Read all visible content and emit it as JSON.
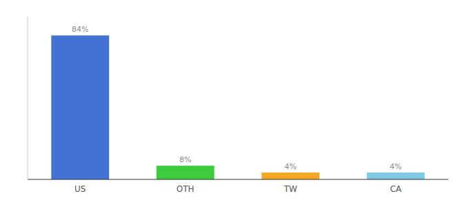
{
  "chart_data": {
    "type": "bar",
    "categories": [
      "US",
      "OTH",
      "TW",
      "CA"
    ],
    "values": [
      84,
      8,
      4,
      4
    ],
    "value_labels": [
      "84%",
      "8%",
      "4%",
      "4%"
    ],
    "colors": [
      "#4472d4",
      "#3dcc3d",
      "#f5a623",
      "#7ec8e3"
    ],
    "ylim": [
      0,
      95
    ],
    "data_labels": true,
    "tick_labels": "x",
    "grid": false
  }
}
